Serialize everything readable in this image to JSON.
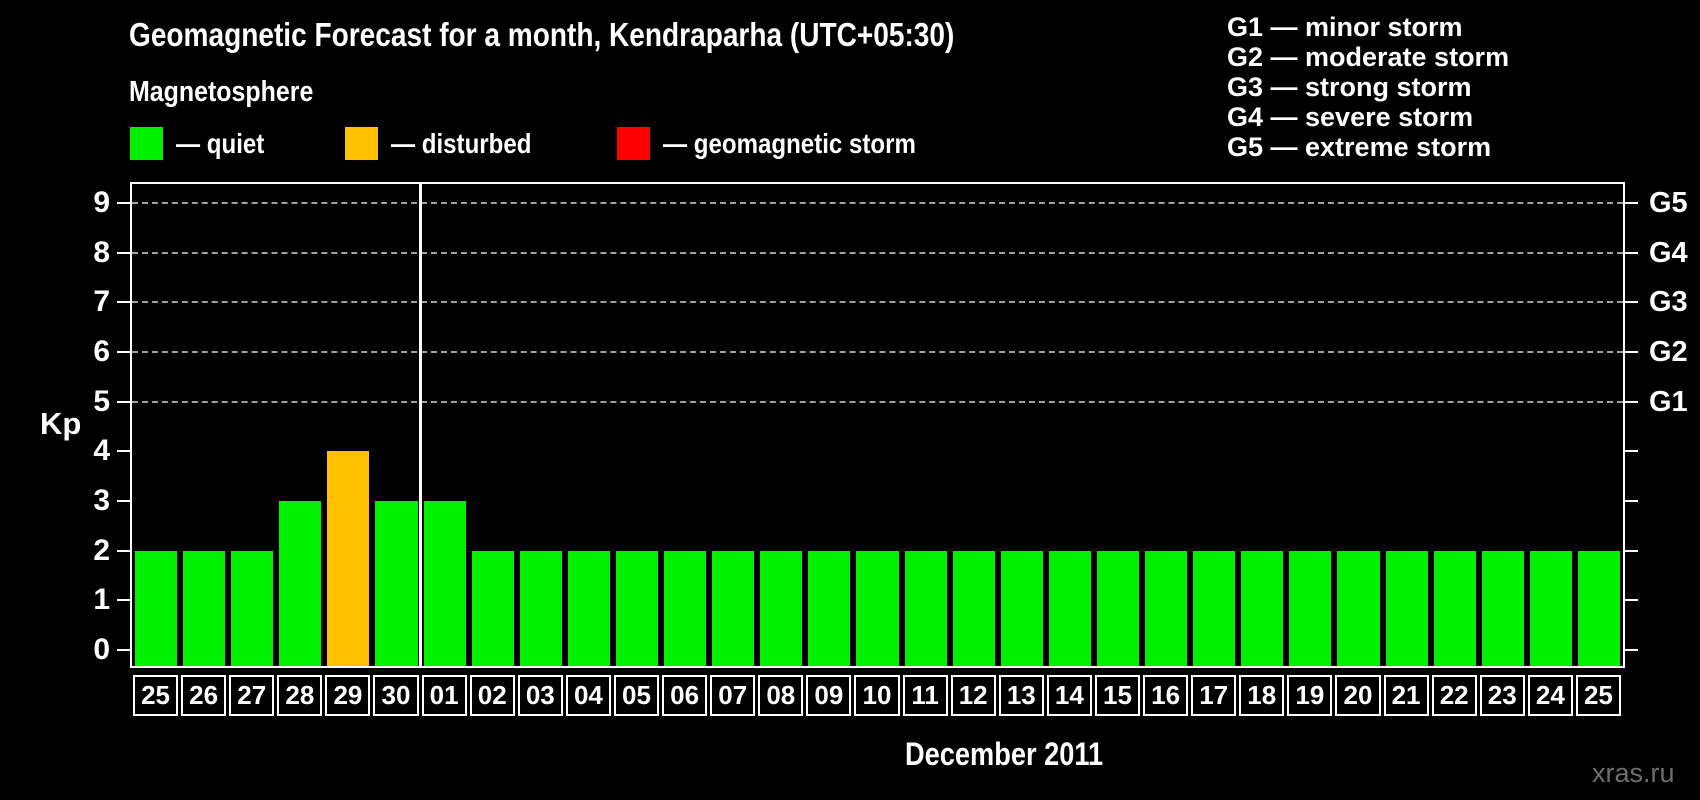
{
  "watermark": "xras.ru",
  "chart_data": {
    "type": "bar",
    "title": "Geomagnetic Forecast for a month, Kendraparha (UTC+05:30)",
    "subtitle": "Magnetosphere",
    "ylabel": "Kp",
    "xlabel": "December 2011",
    "ylim": [
      0,
      9
    ],
    "yticks": [
      "0",
      "1",
      "2",
      "3",
      "4",
      "5",
      "6",
      "7",
      "8",
      "9"
    ],
    "grid_levels": [
      5,
      6,
      7,
      8,
      9
    ],
    "legend": [
      {
        "label": "— quiet",
        "status": "quiet"
      },
      {
        "label": "— disturbed",
        "status": "disturbed"
      },
      {
        "label": "— geomagnetic storm",
        "status": "storm"
      }
    ],
    "g_legend": [
      "G1 — minor storm",
      "G2 — moderate storm",
      "G3 — strong storm",
      "G4 — severe storm",
      "G5 — extreme storm"
    ],
    "g_levels": [
      {
        "label": "G5",
        "kp": 9
      },
      {
        "label": "G4",
        "kp": 8
      },
      {
        "label": "G3",
        "kp": 7
      },
      {
        "label": "G2",
        "kp": 6
      },
      {
        "label": "G1",
        "kp": 5
      }
    ],
    "categories": [
      "25",
      "26",
      "27",
      "28",
      "29",
      "30",
      "01",
      "02",
      "03",
      "04",
      "05",
      "06",
      "07",
      "08",
      "09",
      "10",
      "11",
      "12",
      "13",
      "14",
      "15",
      "16",
      "17",
      "18",
      "19",
      "20",
      "21",
      "22",
      "23",
      "24",
      "25"
    ],
    "values": [
      2,
      2,
      2,
      3,
      4,
      3,
      3,
      2,
      2,
      2,
      2,
      2,
      2,
      2,
      2,
      2,
      2,
      2,
      2,
      2,
      2,
      2,
      2,
      2,
      2,
      2,
      2,
      2,
      2,
      2,
      2
    ],
    "statuses": [
      "quiet",
      "quiet",
      "quiet",
      "quiet",
      "disturbed",
      "quiet",
      "quiet",
      "quiet",
      "quiet",
      "quiet",
      "quiet",
      "quiet",
      "quiet",
      "quiet",
      "quiet",
      "quiet",
      "quiet",
      "quiet",
      "quiet",
      "quiet",
      "quiet",
      "quiet",
      "quiet",
      "quiet",
      "quiet",
      "quiet",
      "quiet",
      "quiet",
      "quiet",
      "quiet",
      "quiet"
    ],
    "month_divider_after": 5,
    "colors": {
      "quiet": "#00f000",
      "disturbed": "#ffc000",
      "storm": "#ff0000",
      "axis": "#ffffff",
      "grid": "#a0a0a0",
      "background": "#000000",
      "watermark": "#6e6e6e"
    }
  }
}
